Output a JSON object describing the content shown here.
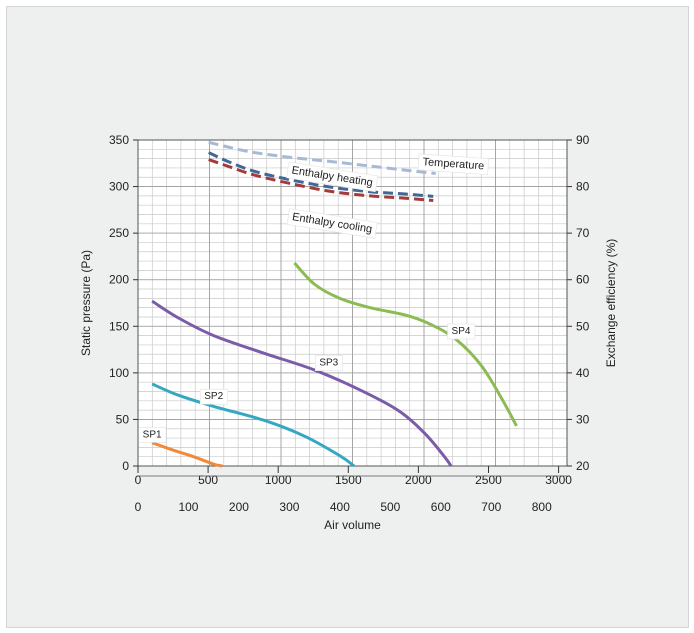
{
  "chart_data": {
    "type": "line",
    "xlabel": "Air volume",
    "ylabel": "Static pressure (Pa)",
    "y2label": "Exchange efficiency (%)",
    "xlim": [
      0,
      850
    ],
    "x_top_ticks": [
      "0",
      "500",
      "1000",
      "1500",
      "2000",
      "2500",
      "3000"
    ],
    "x_top_tick_values": [
      0,
      500,
      1000,
      1500,
      2000,
      2500,
      3000
    ],
    "x_top_per_bottom_unit": 3.6,
    "x_bottom_ticks": [
      "0",
      "100",
      "200",
      "300",
      "400",
      "500",
      "600",
      "700",
      "800"
    ],
    "x_bottom_tick_values": [
      0,
      100,
      200,
      300,
      400,
      500,
      600,
      700,
      800
    ],
    "ylim": [
      0,
      350
    ],
    "y_ticks": [
      "0",
      "50",
      "100",
      "150",
      "200",
      "250",
      "300",
      "350"
    ],
    "y_tick_values": [
      0,
      50,
      100,
      150,
      200,
      250,
      300,
      350
    ],
    "y2lim": [
      20,
      90
    ],
    "y2_ticks": [
      "20",
      "30",
      "40",
      "50",
      "60",
      "70",
      "80",
      "90"
    ],
    "y2_tick_values": [
      20,
      30,
      40,
      50,
      60,
      70,
      80,
      90
    ],
    "grid": true,
    "legend": "none",
    "series": [
      {
        "name": "SP1",
        "axis": "left",
        "color": "#f08a3a",
        "dash": false,
        "label_at": [
          28,
          35
        ],
        "points": [
          [
            28,
            25
          ],
          [
            70,
            17
          ],
          [
            110,
            10
          ],
          [
            150,
            2
          ],
          [
            167,
            0
          ]
        ]
      },
      {
        "name": "SP2",
        "axis": "left",
        "color": "#33a8c0",
        "dash": false,
        "label_at": [
          150,
          76
        ],
        "points": [
          [
            28,
            88
          ],
          [
            80,
            76
          ],
          [
            150,
            64
          ],
          [
            250,
            49
          ],
          [
            330,
            32
          ],
          [
            400,
            11
          ],
          [
            428,
            0
          ]
        ]
      },
      {
        "name": "SP3",
        "axis": "left",
        "color": "#7b5ca8",
        "dash": false,
        "label_at": [
          378,
          112
        ],
        "points": [
          [
            28,
            177
          ],
          [
            80,
            159
          ],
          [
            150,
            140
          ],
          [
            250,
            121
          ],
          [
            350,
            103
          ],
          [
            450,
            79
          ],
          [
            520,
            58
          ],
          [
            570,
            34
          ],
          [
            610,
            8
          ],
          [
            620,
            0
          ]
        ]
      },
      {
        "name": "SP4",
        "axis": "left",
        "color": "#8cbb53",
        "dash": false,
        "label_at": [
          640,
          146
        ],
        "points": [
          [
            310,
            218
          ],
          [
            350,
            195
          ],
          [
            400,
            180
          ],
          [
            460,
            170
          ],
          [
            530,
            162
          ],
          [
            580,
            152
          ],
          [
            630,
            136
          ],
          [
            680,
            108
          ],
          [
            720,
            73
          ],
          [
            750,
            43
          ]
        ]
      },
      {
        "name": "Temperature",
        "axis": "right",
        "color": "#a6bad6",
        "dash": true,
        "label_at": [
          625,
          85
        ],
        "points": [
          [
            140,
            89.5
          ],
          [
            220,
            87.5
          ],
          [
            300,
            86.3
          ],
          [
            380,
            85.4
          ],
          [
            460,
            84.4
          ],
          [
            540,
            83.4
          ],
          [
            590,
            82.8
          ]
        ]
      },
      {
        "name": "Enthalpy heating",
        "axis": "right",
        "color": "#3f6896",
        "dash": true,
        "label_at": [
          385,
          82.3
        ],
        "points": [
          [
            140,
            87.3
          ],
          [
            180,
            85.3
          ],
          [
            230,
            83.3
          ],
          [
            300,
            81.5
          ],
          [
            380,
            79.9
          ],
          [
            460,
            78.9
          ],
          [
            530,
            78.4
          ],
          [
            585,
            77.9
          ]
        ]
      },
      {
        "name": "Enthalpy cooling",
        "axis": "right",
        "color": "#a53a3a",
        "dash": true,
        "label_at": [
          385,
          72.3
        ],
        "points": [
          [
            140,
            85.8
          ],
          [
            180,
            84.3
          ],
          [
            230,
            82.5
          ],
          [
            300,
            80.7
          ],
          [
            380,
            79.0
          ],
          [
            460,
            78.0
          ],
          [
            530,
            77.5
          ],
          [
            585,
            77.0
          ]
        ]
      }
    ]
  }
}
